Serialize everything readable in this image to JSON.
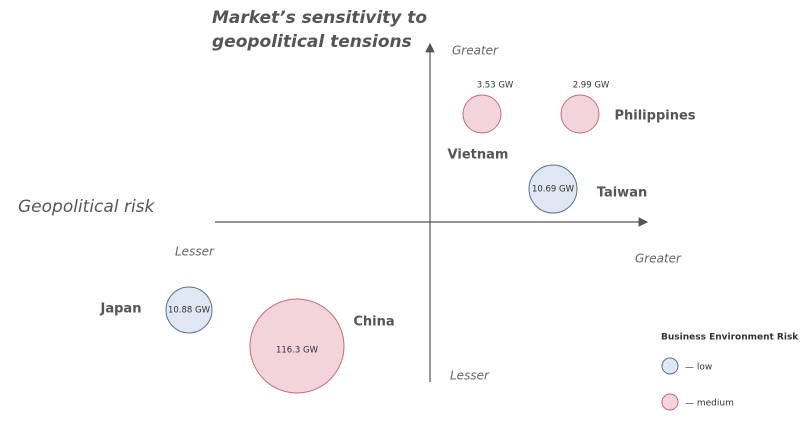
{
  "title_lines": [
    "Market’s sensitivity to",
    "geopolitical tensions"
  ],
  "x_axis": {
    "label": "Geopolitical risk",
    "low": "Lesser",
    "high": "Greater"
  },
  "y_axis": {
    "low": "Lesser",
    "high": "Greater"
  },
  "bubbles": [
    {
      "name": "Vietnam",
      "capacity": "3.53 GW",
      "color": "#f4d4db"
    },
    {
      "name": "Philippines",
      "capacity": "2.99 GW",
      "color": "#f4d4db"
    },
    {
      "name": "Taiwan",
      "capacity": "10.69 GW",
      "color": "#dfe7f2"
    },
    {
      "name": "Japan",
      "capacity": "10.88 GW",
      "color": "#dfe7f2"
    },
    {
      "name": "China",
      "capacity": "116.3 GW",
      "color": "#f4d4db"
    }
  ],
  "legend": {
    "title": "Business Environment Risk",
    "items": [
      {
        "label": "— low",
        "color": "#dfe7f2"
      },
      {
        "label": "— medium",
        "color": "#f4d4db"
      }
    ]
  }
}
